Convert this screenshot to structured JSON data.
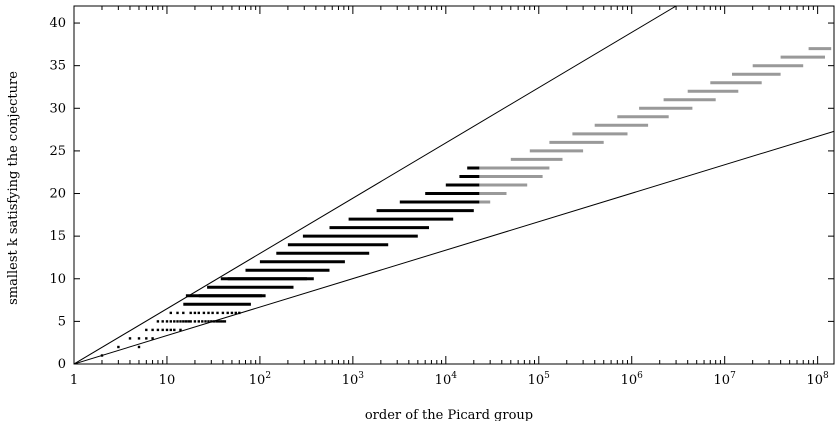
{
  "chart_data": {
    "type": "scatter",
    "title": "",
    "xlabel": "order of the Picard group",
    "ylabel": "smallest k satisfying the conjecture",
    "xscale": "log",
    "xlim": [
      1,
      150000000
    ],
    "ylim": [
      0,
      42
    ],
    "grid": false,
    "x_ticks": [
      {
        "value": 1,
        "base": "1",
        "exp": ""
      },
      {
        "value": 10,
        "base": "10",
        "exp": ""
      },
      {
        "value": 100,
        "base": "10",
        "exp": "2"
      },
      {
        "value": 1000,
        "base": "10",
        "exp": "3"
      },
      {
        "value": 10000,
        "base": "10",
        "exp": "4"
      },
      {
        "value": 100000,
        "base": "10",
        "exp": "5"
      },
      {
        "value": 1000000,
        "base": "10",
        "exp": "6"
      },
      {
        "value": 10000000,
        "base": "10",
        "exp": "7"
      },
      {
        "value": 100000000,
        "base": "10",
        "exp": "8"
      }
    ],
    "y_ticks": [
      0,
      5,
      10,
      15,
      20,
      25,
      30,
      35,
      40
    ],
    "bound_lines": [
      {
        "points": [
          [
            1,
            0
          ],
          [
            3000000,
            42
          ]
        ],
        "color": "#000000"
      },
      {
        "points": [
          [
            1,
            0
          ],
          [
            150000000,
            27.3
          ]
        ],
        "color": "#000000"
      }
    ],
    "series": [
      {
        "color": "#000000",
        "points": [
          [
            2,
            1
          ],
          [
            3,
            2
          ],
          [
            4,
            3
          ],
          [
            5,
            3
          ],
          [
            6,
            3
          ],
          [
            7,
            3
          ],
          [
            5,
            2
          ],
          [
            6,
            4
          ],
          [
            7,
            4
          ],
          [
            8,
            4
          ],
          [
            9,
            4
          ],
          [
            10,
            4
          ],
          [
            11,
            4
          ],
          [
            12,
            4
          ],
          [
            14,
            4
          ],
          [
            8,
            5
          ],
          [
            9,
            5
          ],
          [
            10,
            5
          ],
          [
            11,
            5
          ],
          [
            12,
            5
          ],
          [
            13,
            5
          ],
          [
            14,
            5
          ],
          [
            15,
            5
          ],
          [
            16,
            5
          ],
          [
            17,
            5
          ],
          [
            18,
            5
          ],
          [
            20,
            5
          ],
          [
            22,
            5
          ],
          [
            24,
            5
          ],
          [
            26,
            5
          ],
          [
            28,
            5
          ],
          [
            30,
            5
          ],
          [
            32,
            5
          ],
          [
            34,
            5
          ],
          [
            36,
            5
          ],
          [
            38,
            5
          ],
          [
            40,
            5
          ],
          [
            42,
            5
          ],
          [
            11,
            6
          ],
          [
            13,
            6
          ],
          [
            15,
            6
          ],
          [
            18,
            6
          ],
          [
            20,
            6
          ],
          [
            22,
            6
          ],
          [
            25,
            6
          ],
          [
            28,
            6
          ],
          [
            31,
            6
          ],
          [
            35,
            6
          ],
          [
            40,
            6
          ],
          [
            45,
            6
          ],
          [
            50,
            6
          ],
          [
            55,
            6
          ],
          [
            60,
            6
          ]
        ],
        "segments": [
          [
            15,
            7,
            80
          ],
          [
            16,
            8,
            115
          ],
          [
            22,
            8,
            105
          ],
          [
            27,
            9,
            230
          ],
          [
            38,
            10,
            320
          ],
          [
            45,
            10,
            380
          ],
          [
            70,
            11,
            560
          ],
          [
            100,
            12,
            820
          ],
          [
            150,
            13,
            1500
          ],
          [
            200,
            14,
            2400
          ],
          [
            290,
            15,
            5000
          ],
          [
            560,
            16,
            6600
          ],
          [
            900,
            17,
            12000
          ],
          [
            1800,
            18,
            20000
          ],
          [
            3200,
            19,
            23000
          ],
          [
            6000,
            20,
            23000
          ],
          [
            10000,
            21,
            23000
          ],
          [
            14000,
            22,
            23000
          ],
          [
            17000,
            23,
            23000
          ]
        ]
      },
      {
        "color": "#999999",
        "points": [],
        "segments": [
          [
            23000,
            19,
            30000
          ],
          [
            23000,
            20,
            45000
          ],
          [
            23000,
            21,
            75000
          ],
          [
            23000,
            22,
            110000
          ],
          [
            23000,
            23,
            130000
          ],
          [
            30000,
            23,
            45000
          ],
          [
            50000,
            24,
            180000
          ],
          [
            80000,
            25,
            300000
          ],
          [
            130000,
            26,
            500000
          ],
          [
            230000,
            27,
            900000
          ],
          [
            400000,
            28,
            1500000
          ],
          [
            700000,
            29,
            2500000
          ],
          [
            1200000,
            30,
            4500000
          ],
          [
            2200000,
            31,
            8000000
          ],
          [
            4000000,
            32,
            14000000
          ],
          [
            7000000,
            33,
            25000000
          ],
          [
            12000000,
            34,
            40000000
          ],
          [
            20000000,
            35,
            70000000
          ],
          [
            40000000,
            36,
            120000000
          ],
          [
            80000000,
            37,
            140000000
          ]
        ]
      }
    ]
  }
}
